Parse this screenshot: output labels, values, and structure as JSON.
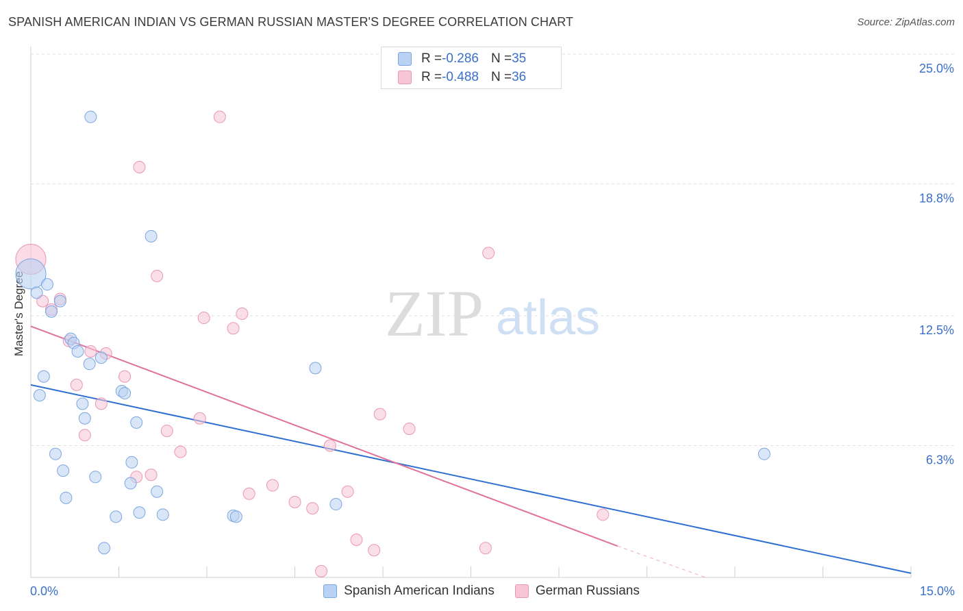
{
  "header": {
    "title": "SPANISH AMERICAN INDIAN VS GERMAN RUSSIAN MASTER'S DEGREE CORRELATION CHART",
    "source": "Source: ZipAtlas.com"
  },
  "legend": {
    "series1": {
      "r_label": "R = ",
      "r_value": "-0.286",
      "n_label": "N = ",
      "n_value": "35"
    },
    "series2": {
      "r_label": "R = ",
      "r_value": "-0.488",
      "n_label": "N = ",
      "n_value": "36"
    }
  },
  "watermark": {
    "zip": "ZIP",
    "atlas": "atlas"
  },
  "colors": {
    "blue_fill": "#b9d1f3",
    "blue_stroke": "#7aa6e0",
    "blue_line": "#2e6fd0",
    "pink_fill": "#f8c5d6",
    "pink_stroke": "#e996b2",
    "pink_line": "#e0709b",
    "axis_text": "#3a6fc9",
    "grid": "#dddddd"
  },
  "chart_data": {
    "type": "scatter",
    "title": "SPANISH AMERICAN INDIAN VS GERMAN RUSSIAN MASTER'S DEGREE CORRELATION CHART",
    "xlabel": "",
    "ylabel": "Master's Degree",
    "xlim": [
      0,
      15
    ],
    "ylim": [
      0,
      25
    ],
    "x_tick_labels": [
      "0.0%",
      "15.0%"
    ],
    "y_ticks": [
      6.3,
      12.5,
      18.8,
      25.0
    ],
    "y_tick_labels": [
      "6.3%",
      "12.5%",
      "18.8%",
      "25.0%"
    ],
    "grid": true,
    "legend_position": "top-center",
    "series": [
      {
        "name": "Spanish American Indians",
        "color": "#b9d1f3",
        "trend": {
          "x": [
            0,
            15
          ],
          "y": [
            9.2,
            0.2
          ]
        },
        "points": [
          {
            "x": 0.0,
            "y": 14.5,
            "big": true
          },
          {
            "x": 0.1,
            "y": 13.6
          },
          {
            "x": 0.28,
            "y": 14.0
          },
          {
            "x": 0.35,
            "y": 12.7
          },
          {
            "x": 0.5,
            "y": 13.2
          },
          {
            "x": 0.22,
            "y": 9.6
          },
          {
            "x": 0.15,
            "y": 8.7
          },
          {
            "x": 0.68,
            "y": 11.4
          },
          {
            "x": 0.73,
            "y": 11.2
          },
          {
            "x": 0.8,
            "y": 10.8
          },
          {
            "x": 1.0,
            "y": 10.2
          },
          {
            "x": 1.2,
            "y": 10.5
          },
          {
            "x": 0.88,
            "y": 8.3
          },
          {
            "x": 0.92,
            "y": 7.6
          },
          {
            "x": 1.55,
            "y": 8.9
          },
          {
            "x": 1.6,
            "y": 8.8
          },
          {
            "x": 1.8,
            "y": 7.4
          },
          {
            "x": 0.42,
            "y": 5.9
          },
          {
            "x": 0.55,
            "y": 5.1
          },
          {
            "x": 0.6,
            "y": 3.8
          },
          {
            "x": 1.1,
            "y": 4.8
          },
          {
            "x": 1.72,
            "y": 5.5
          },
          {
            "x": 1.7,
            "y": 4.5
          },
          {
            "x": 2.15,
            "y": 4.1
          },
          {
            "x": 1.45,
            "y": 2.9
          },
          {
            "x": 1.85,
            "y": 3.1
          },
          {
            "x": 2.25,
            "y": 3.0
          },
          {
            "x": 3.45,
            "y": 2.95
          },
          {
            "x": 3.5,
            "y": 2.9
          },
          {
            "x": 1.25,
            "y": 1.4
          },
          {
            "x": 1.02,
            "y": 22.0
          },
          {
            "x": 2.05,
            "y": 16.3
          },
          {
            "x": 4.85,
            "y": 10.0
          },
          {
            "x": 5.2,
            "y": 3.5
          },
          {
            "x": 12.5,
            "y": 5.9
          }
        ]
      },
      {
        "name": "German Russians",
        "color": "#f8c5d6",
        "trend": {
          "x": [
            0,
            10.0
          ],
          "y": [
            12.0,
            1.5
          ]
        },
        "trend_ext": {
          "x": [
            10.0,
            11.5
          ],
          "y": [
            1.5,
            0.0
          ]
        },
        "points": [
          {
            "x": 0.0,
            "y": 15.2,
            "big": true
          },
          {
            "x": 0.2,
            "y": 13.2
          },
          {
            "x": 0.35,
            "y": 12.8
          },
          {
            "x": 0.5,
            "y": 13.3
          },
          {
            "x": 0.65,
            "y": 11.3
          },
          {
            "x": 1.02,
            "y": 10.8
          },
          {
            "x": 1.28,
            "y": 10.7
          },
          {
            "x": 0.78,
            "y": 9.2
          },
          {
            "x": 1.6,
            "y": 9.6
          },
          {
            "x": 1.2,
            "y": 8.3
          },
          {
            "x": 0.92,
            "y": 6.8
          },
          {
            "x": 1.85,
            "y": 19.6
          },
          {
            "x": 3.22,
            "y": 22.0
          },
          {
            "x": 2.15,
            "y": 14.4
          },
          {
            "x": 2.95,
            "y": 12.4
          },
          {
            "x": 3.6,
            "y": 12.6
          },
          {
            "x": 3.45,
            "y": 11.9
          },
          {
            "x": 2.88,
            "y": 7.6
          },
          {
            "x": 2.32,
            "y": 7.0
          },
          {
            "x": 2.55,
            "y": 6.0
          },
          {
            "x": 1.8,
            "y": 4.8
          },
          {
            "x": 2.05,
            "y": 4.9
          },
          {
            "x": 3.72,
            "y": 4.0
          },
          {
            "x": 4.12,
            "y": 4.4
          },
          {
            "x": 4.5,
            "y": 3.6
          },
          {
            "x": 4.8,
            "y": 3.3
          },
          {
            "x": 5.1,
            "y": 6.3
          },
          {
            "x": 5.4,
            "y": 4.1
          },
          {
            "x": 5.55,
            "y": 1.8
          },
          {
            "x": 5.85,
            "y": 1.3
          },
          {
            "x": 4.95,
            "y": 0.3
          },
          {
            "x": 5.95,
            "y": 7.8
          },
          {
            "x": 6.45,
            "y": 7.1
          },
          {
            "x": 7.8,
            "y": 15.5
          },
          {
            "x": 7.75,
            "y": 1.4
          },
          {
            "x": 9.75,
            "y": 3.0
          }
        ]
      }
    ]
  }
}
